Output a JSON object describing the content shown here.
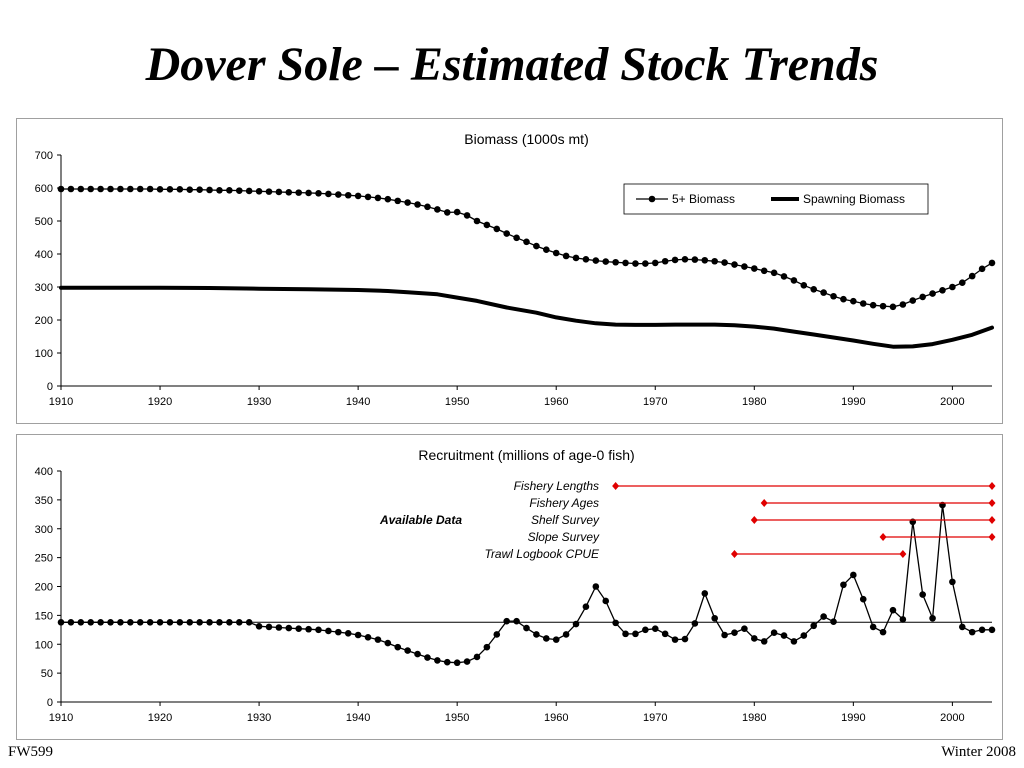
{
  "slide": {
    "title": "Dover Sole – Estimated Stock Trends",
    "footer_left": "FW599",
    "footer_right": "Winter 2008"
  },
  "chart_data": [
    {
      "type": "line",
      "title": "Biomass (1000s mt)",
      "xlabel": "",
      "ylabel": "",
      "xlim": [
        1910,
        2004
      ],
      "ylim": [
        0,
        700
      ],
      "xticks": [
        1910,
        1920,
        1930,
        1940,
        1950,
        1960,
        1970,
        1980,
        1990,
        2000
      ],
      "yticks": [
        0,
        100,
        200,
        300,
        400,
        500,
        600,
        700
      ],
      "legend": {
        "placement": "top-right",
        "entries": [
          "5+ Biomass",
          "Spawning Biomass"
        ]
      },
      "series": [
        {
          "name": "5+ Biomass",
          "marker": "circle",
          "x": [
            1910,
            1911,
            1912,
            1913,
            1914,
            1915,
            1916,
            1917,
            1918,
            1919,
            1920,
            1921,
            1922,
            1923,
            1924,
            1925,
            1926,
            1927,
            1928,
            1929,
            1930,
            1931,
            1932,
            1933,
            1934,
            1935,
            1936,
            1937,
            1938,
            1939,
            1940,
            1941,
            1942,
            1943,
            1944,
            1945,
            1946,
            1947,
            1948,
            1949,
            1950,
            1951,
            1952,
            1953,
            1954,
            1955,
            1956,
            1957,
            1958,
            1959,
            1960,
            1961,
            1962,
            1963,
            1964,
            1965,
            1966,
            1967,
            1968,
            1969,
            1970,
            1971,
            1972,
            1973,
            1974,
            1975,
            1976,
            1977,
            1978,
            1979,
            1980,
            1981,
            1982,
            1983,
            1984,
            1985,
            1986,
            1987,
            1988,
            1989,
            1990,
            1991,
            1992,
            1993,
            1994,
            1995,
            1996,
            1997,
            1998,
            1999,
            2000,
            2001,
            2002,
            2003,
            2004
          ],
          "values": [
            597,
            597,
            597,
            597,
            597,
            597,
            597,
            597,
            597,
            597,
            596,
            596,
            596,
            595,
            595,
            594,
            593,
            593,
            592,
            591,
            590,
            589,
            588,
            587,
            586,
            585,
            584,
            582,
            580,
            578,
            576,
            573,
            570,
            566,
            561,
            556,
            550,
            543,
            535,
            526,
            527,
            517,
            500,
            488,
            476,
            462,
            449,
            437,
            424,
            413,
            403,
            394,
            388,
            384,
            380,
            377,
            375,
            373,
            371,
            371,
            373,
            378,
            382,
            384,
            383,
            381,
            378,
            374,
            368,
            362,
            356,
            349,
            343,
            332,
            320,
            305,
            293,
            283,
            272,
            263,
            257,
            250,
            245,
            242,
            240,
            247,
            259,
            270,
            280,
            290,
            300,
            313,
            333,
            355,
            373
          ]
        },
        {
          "name": "Spawning Biomass",
          "marker": "none",
          "x": [
            1910,
            1915,
            1920,
            1925,
            1930,
            1935,
            1940,
            1943,
            1945,
            1948,
            1950,
            1952,
            1955,
            1958,
            1960,
            1962,
            1964,
            1966,
            1968,
            1970,
            1972,
            1974,
            1976,
            1978,
            1980,
            1982,
            1984,
            1986,
            1988,
            1990,
            1992,
            1994,
            1996,
            1998,
            2000,
            2002,
            2004
          ],
          "values": [
            298,
            298,
            298,
            297,
            295,
            293,
            291,
            288,
            284,
            278,
            268,
            258,
            238,
            222,
            208,
            198,
            190,
            186,
            185,
            185,
            186,
            186,
            186,
            184,
            180,
            174,
            165,
            156,
            147,
            138,
            128,
            119,
            120,
            127,
            140,
            155,
            177
          ]
        }
      ]
    },
    {
      "type": "line",
      "title": "Recruitment (millions of age-0 fish)",
      "xlabel": "",
      "ylabel": "",
      "xlim": [
        1910,
        2004
      ],
      "ylim": [
        0,
        400
      ],
      "xticks": [
        1910,
        1920,
        1930,
        1940,
        1950,
        1960,
        1970,
        1980,
        1990,
        2000
      ],
      "yticks": [
        0,
        50,
        100,
        150,
        200,
        250,
        300,
        350,
        400
      ],
      "reference_line": 138,
      "series": [
        {
          "name": "",
          "marker": "circle",
          "x": [
            1910,
            1911,
            1912,
            1913,
            1914,
            1915,
            1916,
            1917,
            1918,
            1919,
            1920,
            1921,
            1922,
            1923,
            1924,
            1925,
            1926,
            1927,
            1928,
            1929,
            1930,
            1931,
            1932,
            1933,
            1934,
            1935,
            1936,
            1937,
            1938,
            1939,
            1940,
            1941,
            1942,
            1943,
            1944,
            1945,
            1946,
            1947,
            1948,
            1949,
            1950,
            1951,
            1952,
            1953,
            1954,
            1955,
            1956,
            1957,
            1958,
            1959,
            1960,
            1961,
            1962,
            1963,
            1964,
            1965,
            1966,
            1967,
            1968,
            1969,
            1970,
            1971,
            1972,
            1973,
            1974,
            1975,
            1976,
            1977,
            1978,
            1979,
            1980,
            1981,
            1982,
            1983,
            1984,
            1985,
            1986,
            1987,
            1988,
            1989,
            1990,
            1991,
            1992,
            1993,
            1994,
            1995,
            1996,
            1997,
            1998,
            1999,
            2000,
            2001,
            2002,
            2003,
            2004
          ],
          "values": [
            138,
            138,
            138,
            138,
            138,
            138,
            138,
            138,
            138,
            138,
            138,
            138,
            138,
            138,
            138,
            138,
            138,
            138,
            138,
            138,
            131,
            130,
            129,
            128,
            127,
            126,
            125,
            123,
            121,
            119,
            116,
            112,
            108,
            102,
            95,
            89,
            83,
            77,
            72,
            69,
            68,
            70,
            78,
            95,
            117,
            140,
            140,
            128,
            117,
            110,
            108,
            117,
            135,
            165,
            200,
            175,
            137,
            118,
            118,
            125,
            127,
            118,
            108,
            109,
            136,
            188,
            145,
            116,
            120,
            127,
            110,
            105,
            120,
            115,
            105,
            115,
            132,
            148,
            139,
            203,
            220,
            178,
            130,
            121,
            159,
            143,
            312,
            186,
            145,
            341,
            208,
            130,
            121,
            125,
            125
          ]
        }
      ],
      "annotation": {
        "label": "Available Data",
        "rows": [
          {
            "label": "Fishery Lengths",
            "start": 1966,
            "end": 2004
          },
          {
            "label": "Fishery Ages",
            "start": 1981,
            "end": 2004
          },
          {
            "label": "Shelf Survey",
            "start": 1980,
            "end": 2004
          },
          {
            "label": "Slope Survey",
            "start": 1993,
            "end": 2004
          },
          {
            "label": "Trawl Logbook CPUE",
            "start": 1978,
            "end": 1995
          }
        ],
        "color": "#e00000"
      }
    }
  ]
}
